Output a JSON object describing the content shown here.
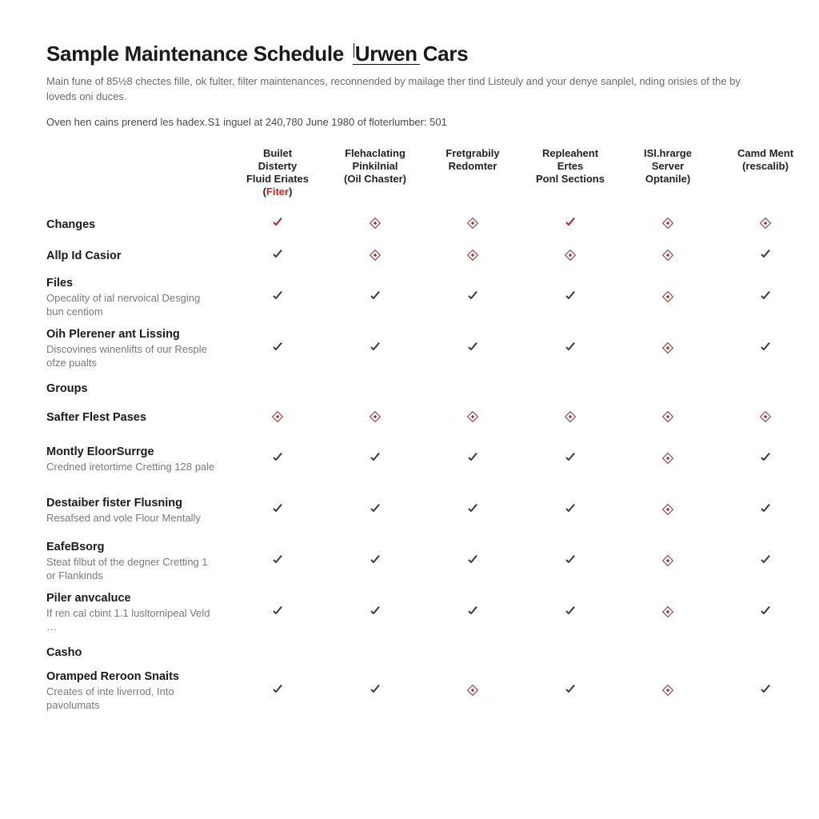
{
  "title_a": "Sample Maintenance Schedule",
  "title_b": "Urwen",
  "title_c": " Cars",
  "subtitle": "Main fune of 85½8 chectes fille, ok fulter, filter maintenances, reconnended by mailage ther tind Listeuly and your denye sanplel, nding orisies of the by loveds oni duces.",
  "subhead": "Oven hen cains prenerd les hadex.S1 inguel at 240,780 June 1980 of floterlumber: 501",
  "columns": [
    {
      "l1": "Builet",
      "l2": "Disterty",
      "l3": "Fluid Eriates",
      "paren_pre": "(",
      "paren_red": "Fiter",
      "paren_post": ")"
    },
    {
      "l1": "",
      "l2": "Flehaclating",
      "l3": "Pinkilnial",
      "paren_pre": "(",
      "paren_red": "",
      "paren_post": "Oil Chaster)"
    },
    {
      "l1": "",
      "l2": "Fretgrabily",
      "l3": "Redomter",
      "paren_pre": "",
      "paren_red": "",
      "paren_post": ""
    },
    {
      "l1": "",
      "l2": "Repleahent",
      "l3": "Ertes",
      "paren_pre": "",
      "paren_red": "",
      "paren_post": "Ponl Sections"
    },
    {
      "l1": "",
      "l2": "ISl.hrarge",
      "l3": "Server",
      "paren_pre": "",
      "paren_red": "",
      "paren_post": "Optanile)"
    },
    {
      "l1": "",
      "l2": "",
      "l3": "Camd Ment",
      "paren_pre": "(",
      "paren_red": "",
      "paren_post": "rescalib)"
    }
  ],
  "section1": "Changes",
  "section2": "Groups",
  "section3": "Casho",
  "rows": [
    {
      "label": "",
      "sub": "",
      "marks": [
        "chk-red",
        "dia",
        "dia",
        "chk-red",
        "dia",
        "dia"
      ],
      "height": "row",
      "isSection": true,
      "sectionKey": "section1"
    },
    {
      "label": "Allp Id Casior",
      "sub": "",
      "marks": [
        "chk-black",
        "dia",
        "dia",
        "dia",
        "dia",
        "chk-black"
      ],
      "height": "row"
    },
    {
      "label": "Files",
      "sub": "Opecality of ial nervoical Desging bun centiom",
      "marks": [
        "chk-black",
        "chk-black",
        "chk-black",
        "chk-black",
        "dia",
        "chk-black"
      ],
      "height": "tall"
    },
    {
      "label": "Oih Plerener ant Lissing",
      "sub": "Discovines winenlifts of our Resple ofze pualts",
      "marks": [
        "chk-black",
        "chk-black",
        "chk-black",
        "chk-black",
        "dia",
        "chk-black"
      ],
      "height": "tall"
    },
    {
      "label": "",
      "sub": "",
      "marks": [
        "",
        "",
        "",
        "",
        "",
        ""
      ],
      "height": "sect",
      "isSection": true,
      "sectionKey": "section2"
    },
    {
      "label": "Safter Flest Pases",
      "sub": "",
      "marks": [
        "dia",
        "dia",
        "dia",
        "dia",
        "dia",
        "dia"
      ],
      "height": "row"
    },
    {
      "label": "Montly EloorSurrge",
      "sub": "Credned iretortime Cretting 128 pale",
      "marks": [
        "chk-black",
        "chk-black",
        "chk-black",
        "chk-black",
        "dia",
        "chk-black"
      ],
      "height": "tall"
    },
    {
      "label": "Destaiber fister Flusning",
      "sub": "Resafsed and vole Flour Mentally",
      "marks": [
        "chk-black",
        "chk-black",
        "chk-black",
        "chk-black",
        "dia",
        "chk-black"
      ],
      "height": "tall"
    },
    {
      "label": "EafeBsorg",
      "sub": "Steat filbut of the degner Cretting 1 or Flankinds",
      "marks": [
        "chk-black",
        "chk-black",
        "chk-black",
        "chk-black",
        "dia",
        "chk-black"
      ],
      "height": "tall"
    },
    {
      "label": "Piler anvcaluce",
      "sub": "If ren cal cbint 1.1 lusltornipeal Veld …",
      "marks": [
        "chk-black",
        "chk-black",
        "chk-black",
        "chk-black",
        "dia",
        "chk-black"
      ],
      "height": "tall"
    },
    {
      "label": "",
      "sub": "",
      "marks": [
        "",
        "",
        "",
        "",
        "",
        ""
      ],
      "height": "sect",
      "isSection": true,
      "sectionKey": "section3"
    },
    {
      "label": "Oramped Reroon Snaits",
      "sub": "Creates of inte liverrod, Into pavolumats",
      "marks": [
        "chk-black",
        "chk-black",
        "dia",
        "chk-black",
        "dia",
        "chk-black"
      ],
      "height": "tall"
    }
  ],
  "colors": {
    "accent_red": "#b02222",
    "text": "#1a1a1a",
    "muted": "#7a7a7a",
    "background": "#ffffff"
  }
}
